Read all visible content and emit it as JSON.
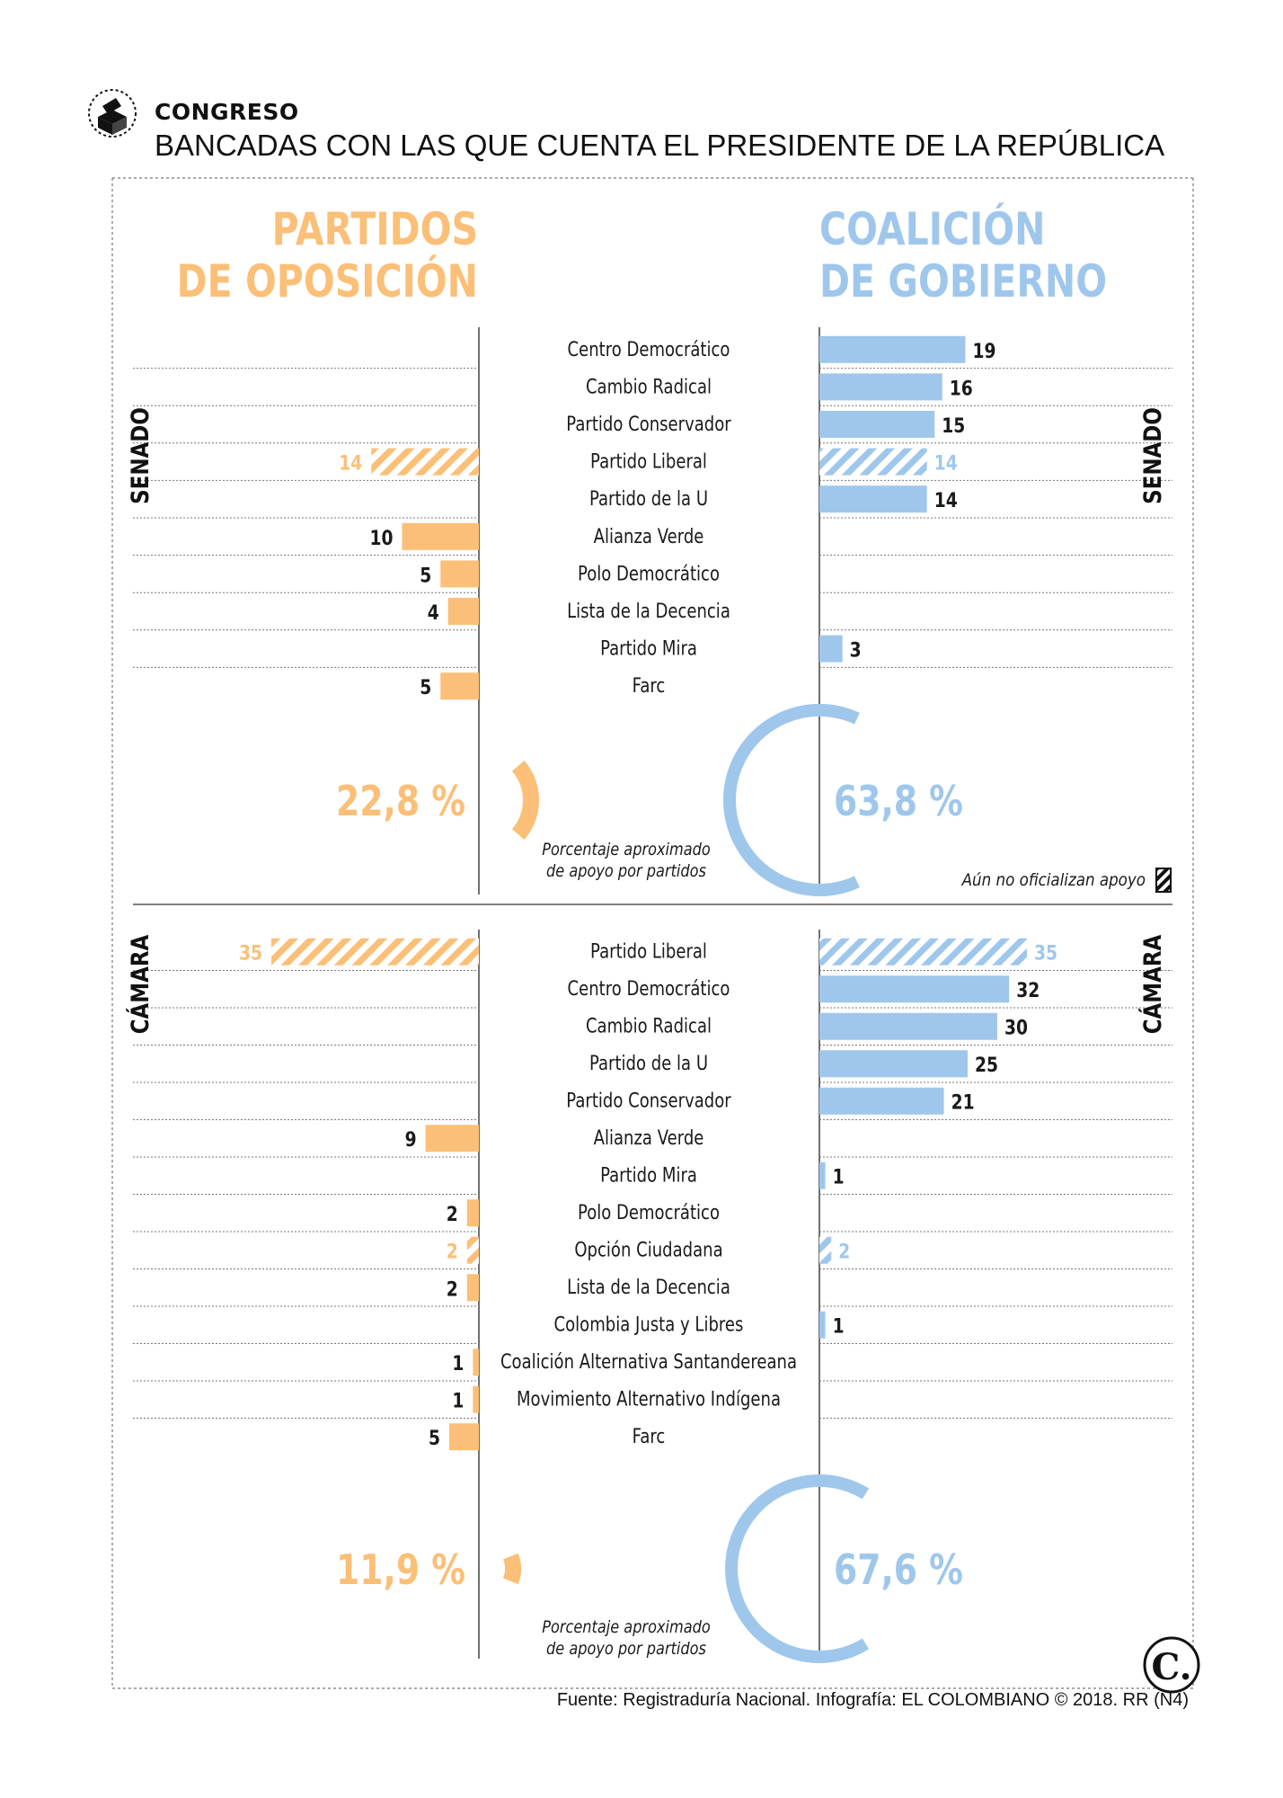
{
  "header": {
    "kicker": "CONGRESO",
    "title": "BANCADAS CON LAS QUE CUENTA EL PRESIDENTE DE LA REPÚBLICA"
  },
  "columns": {
    "opposition_title": [
      "PARTIDOS",
      "DE OPOSICIÓN"
    ],
    "government_title": [
      "COALICIÓN",
      "DE GOBIERNO"
    ]
  },
  "colors": {
    "opposition": "#fbbf77",
    "government": "#9fc7ec",
    "text": "#1a1a1a"
  },
  "legend": {
    "unofficial": "Aún no oficializan apoyo"
  },
  "footer": {
    "source": "Fuente: Registraduría Nacional. Infografía: EL COLOMBIANO © 2018. RR (N4)",
    "logo_letter": "C."
  },
  "chart_data": [
    {
      "type": "bar",
      "chamber": "SENADO",
      "categories": [
        "Centro Democrático",
        "Cambio Radical",
        "Partido Conservador",
        "Partido Liberal",
        "Partido de la U",
        "Alianza Verde",
        "Polo Democrático",
        "Lista de la Decencia",
        "Partido Mira",
        "Farc"
      ],
      "series": [
        {
          "side": "opposition",
          "values": [
            null,
            null,
            null,
            14,
            null,
            10,
            5,
            4,
            null,
            5
          ]
        },
        {
          "side": "government",
          "values": [
            19,
            16,
            15,
            14,
            14,
            null,
            null,
            null,
            3,
            null
          ]
        }
      ],
      "unofficial": [
        "Partido Liberal"
      ],
      "support_percentage": {
        "opposition": "22,8 %",
        "government": "63,8 %",
        "opposition_value": 22.8,
        "government_value": 63.8
      },
      "note": [
        "Porcentaje aproximado",
        "de apoyo por partidos"
      ]
    },
    {
      "type": "bar",
      "chamber": "CÁMARA",
      "categories": [
        "Partido Liberal",
        "Centro Democrático",
        "Cambio Radical",
        "Partido de la U",
        "Partido Conservador",
        "Alianza Verde",
        "Partido Mira",
        "Polo Democrático",
        "Opción Ciudadana",
        "Lista de la Decencia",
        "Colombia Justa y Libres",
        "Coalición Alternativa Santandereana",
        "Movimiento Alternativo Indígena",
        "Farc"
      ],
      "series": [
        {
          "side": "opposition",
          "values": [
            35,
            null,
            null,
            null,
            null,
            9,
            null,
            2,
            2,
            2,
            null,
            1,
            1,
            5
          ]
        },
        {
          "side": "government",
          "values": [
            35,
            32,
            30,
            25,
            21,
            null,
            1,
            null,
            2,
            null,
            1,
            null,
            null,
            null
          ]
        }
      ],
      "unofficial": [
        "Partido Liberal",
        "Opción Ciudadana"
      ],
      "support_percentage": {
        "opposition": "11,9 %",
        "government": "67,6 %",
        "opposition_value": 11.9,
        "government_value": 67.6
      },
      "note": [
        "Porcentaje aproximado",
        "de apoyo por partidos"
      ]
    }
  ]
}
